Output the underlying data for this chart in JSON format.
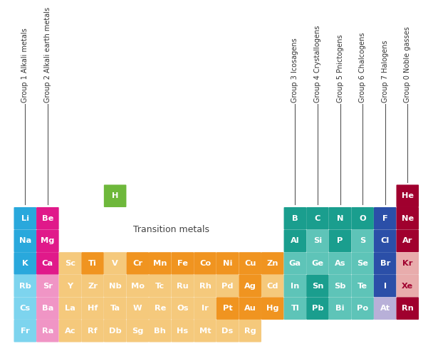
{
  "bg_color": "#ffffff",
  "col_labels": [
    {
      "text": "Group 1 Alkali metals",
      "col": 0
    },
    {
      "text": "Group 2 Alkali earth metals",
      "col": 1
    },
    {
      "text": "Group 3 Icosagens",
      "col": 12
    },
    {
      "text": "Group 4 Crystallogens",
      "col": 13
    },
    {
      "text": "Group 5 Pnictogens",
      "col": 14
    },
    {
      "text": "Group 6 Chalcogens",
      "col": 15
    },
    {
      "text": "Group 7 Halogens",
      "col": 16
    },
    {
      "text": "Group 0 Noble gasses",
      "col": 17
    }
  ],
  "elements": [
    {
      "symbol": "H",
      "row": 1,
      "col": 4,
      "color": "#6EB83B",
      "text_color": "#ffffff"
    },
    {
      "symbol": "He",
      "row": 1,
      "col": 17,
      "color": "#A0002E",
      "text_color": "#ffffff"
    },
    {
      "symbol": "Li",
      "row": 2,
      "col": 0,
      "color": "#29A8DC",
      "text_color": "#ffffff"
    },
    {
      "symbol": "Be",
      "row": 2,
      "col": 1,
      "color": "#E0198A",
      "text_color": "#ffffff"
    },
    {
      "symbol": "B",
      "row": 2,
      "col": 12,
      "color": "#1A9E8E",
      "text_color": "#ffffff"
    },
    {
      "symbol": "C",
      "row": 2,
      "col": 13,
      "color": "#1A9E8E",
      "text_color": "#ffffff"
    },
    {
      "symbol": "N",
      "row": 2,
      "col": 14,
      "color": "#1A9E8E",
      "text_color": "#ffffff"
    },
    {
      "symbol": "O",
      "row": 2,
      "col": 15,
      "color": "#1A9E8E",
      "text_color": "#ffffff"
    },
    {
      "symbol": "F",
      "row": 2,
      "col": 16,
      "color": "#2B4FA8",
      "text_color": "#ffffff"
    },
    {
      "symbol": "Ne",
      "row": 2,
      "col": 17,
      "color": "#A0002E",
      "text_color": "#ffffff"
    },
    {
      "symbol": "Na",
      "row": 3,
      "col": 0,
      "color": "#29A8DC",
      "text_color": "#ffffff"
    },
    {
      "symbol": "Mg",
      "row": 3,
      "col": 1,
      "color": "#E0198A",
      "text_color": "#ffffff"
    },
    {
      "symbol": "Al",
      "row": 3,
      "col": 12,
      "color": "#1A9E8E",
      "text_color": "#ffffff"
    },
    {
      "symbol": "Si",
      "row": 3,
      "col": 13,
      "color": "#5EC4B8",
      "text_color": "#ffffff"
    },
    {
      "symbol": "P",
      "row": 3,
      "col": 14,
      "color": "#1A9E8E",
      "text_color": "#ffffff"
    },
    {
      "symbol": "S",
      "row": 3,
      "col": 15,
      "color": "#5EC4B8",
      "text_color": "#ffffff"
    },
    {
      "symbol": "Cl",
      "row": 3,
      "col": 16,
      "color": "#2B4FA8",
      "text_color": "#ffffff"
    },
    {
      "symbol": "Ar",
      "row": 3,
      "col": 17,
      "color": "#A0002E",
      "text_color": "#ffffff"
    },
    {
      "symbol": "K",
      "row": 4,
      "col": 0,
      "color": "#29A8DC",
      "text_color": "#ffffff"
    },
    {
      "symbol": "Ca",
      "row": 4,
      "col": 1,
      "color": "#E0198A",
      "text_color": "#ffffff"
    },
    {
      "symbol": "Sc",
      "row": 4,
      "col": 2,
      "color": "#F5C97C",
      "text_color": "#ffffff"
    },
    {
      "symbol": "Ti",
      "row": 4,
      "col": 3,
      "color": "#F09420",
      "text_color": "#ffffff"
    },
    {
      "symbol": "V",
      "row": 4,
      "col": 4,
      "color": "#F5C97C",
      "text_color": "#ffffff"
    },
    {
      "symbol": "Cr",
      "row": 4,
      "col": 5,
      "color": "#F09420",
      "text_color": "#ffffff"
    },
    {
      "symbol": "Mn",
      "row": 4,
      "col": 6,
      "color": "#F09420",
      "text_color": "#ffffff"
    },
    {
      "symbol": "Fe",
      "row": 4,
      "col": 7,
      "color": "#F09420",
      "text_color": "#ffffff"
    },
    {
      "symbol": "Co",
      "row": 4,
      "col": 8,
      "color": "#F09420",
      "text_color": "#ffffff"
    },
    {
      "symbol": "Ni",
      "row": 4,
      "col": 9,
      "color": "#F09420",
      "text_color": "#ffffff"
    },
    {
      "symbol": "Cu",
      "row": 4,
      "col": 10,
      "color": "#F09420",
      "text_color": "#ffffff"
    },
    {
      "symbol": "Zn",
      "row": 4,
      "col": 11,
      "color": "#F09420",
      "text_color": "#ffffff"
    },
    {
      "symbol": "Ga",
      "row": 4,
      "col": 12,
      "color": "#5EC4B8",
      "text_color": "#ffffff"
    },
    {
      "symbol": "Ge",
      "row": 4,
      "col": 13,
      "color": "#5EC4B8",
      "text_color": "#ffffff"
    },
    {
      "symbol": "As",
      "row": 4,
      "col": 14,
      "color": "#5EC4B8",
      "text_color": "#ffffff"
    },
    {
      "symbol": "Se",
      "row": 4,
      "col": 15,
      "color": "#5EC4B8",
      "text_color": "#ffffff"
    },
    {
      "symbol": "Br",
      "row": 4,
      "col": 16,
      "color": "#2B4FA8",
      "text_color": "#ffffff"
    },
    {
      "symbol": "Kr",
      "row": 4,
      "col": 17,
      "color": "#E8ACAC",
      "text_color": "#A0002E"
    },
    {
      "symbol": "Rb",
      "row": 5,
      "col": 0,
      "color": "#7DD4EE",
      "text_color": "#ffffff"
    },
    {
      "symbol": "Sr",
      "row": 5,
      "col": 1,
      "color": "#F095C5",
      "text_color": "#ffffff"
    },
    {
      "symbol": "Y",
      "row": 5,
      "col": 2,
      "color": "#F5C97C",
      "text_color": "#ffffff"
    },
    {
      "symbol": "Zr",
      "row": 5,
      "col": 3,
      "color": "#F5C97C",
      "text_color": "#ffffff"
    },
    {
      "symbol": "Nb",
      "row": 5,
      "col": 4,
      "color": "#F5C97C",
      "text_color": "#ffffff"
    },
    {
      "symbol": "Mo",
      "row": 5,
      "col": 5,
      "color": "#F5C97C",
      "text_color": "#ffffff"
    },
    {
      "symbol": "Tc",
      "row": 5,
      "col": 6,
      "color": "#F5C97C",
      "text_color": "#ffffff"
    },
    {
      "symbol": "Ru",
      "row": 5,
      "col": 7,
      "color": "#F5C97C",
      "text_color": "#ffffff"
    },
    {
      "symbol": "Rh",
      "row": 5,
      "col": 8,
      "color": "#F5C97C",
      "text_color": "#ffffff"
    },
    {
      "symbol": "Pd",
      "row": 5,
      "col": 9,
      "color": "#F5C97C",
      "text_color": "#ffffff"
    },
    {
      "symbol": "Ag",
      "row": 5,
      "col": 10,
      "color": "#F09420",
      "text_color": "#ffffff"
    },
    {
      "symbol": "Cd",
      "row": 5,
      "col": 11,
      "color": "#F5C97C",
      "text_color": "#ffffff"
    },
    {
      "symbol": "In",
      "row": 5,
      "col": 12,
      "color": "#5EC4B8",
      "text_color": "#ffffff"
    },
    {
      "symbol": "Sn",
      "row": 5,
      "col": 13,
      "color": "#1A9E8E",
      "text_color": "#ffffff"
    },
    {
      "symbol": "Sb",
      "row": 5,
      "col": 14,
      "color": "#5EC4B8",
      "text_color": "#ffffff"
    },
    {
      "symbol": "Te",
      "row": 5,
      "col": 15,
      "color": "#5EC4B8",
      "text_color": "#ffffff"
    },
    {
      "symbol": "I",
      "row": 5,
      "col": 16,
      "color": "#2B4FA8",
      "text_color": "#ffffff"
    },
    {
      "symbol": "Xe",
      "row": 5,
      "col": 17,
      "color": "#E8ACAC",
      "text_color": "#A0002E"
    },
    {
      "symbol": "Cs",
      "row": 6,
      "col": 0,
      "color": "#7DD4EE",
      "text_color": "#ffffff"
    },
    {
      "symbol": "Ba",
      "row": 6,
      "col": 1,
      "color": "#F095C5",
      "text_color": "#ffffff"
    },
    {
      "symbol": "La",
      "row": 6,
      "col": 2,
      "color": "#F5C97C",
      "text_color": "#ffffff"
    },
    {
      "symbol": "Hf",
      "row": 6,
      "col": 3,
      "color": "#F5C97C",
      "text_color": "#ffffff"
    },
    {
      "symbol": "Ta",
      "row": 6,
      "col": 4,
      "color": "#F5C97C",
      "text_color": "#ffffff"
    },
    {
      "symbol": "W",
      "row": 6,
      "col": 5,
      "color": "#F5C97C",
      "text_color": "#ffffff"
    },
    {
      "symbol": "Re",
      "row": 6,
      "col": 6,
      "color": "#F5C97C",
      "text_color": "#ffffff"
    },
    {
      "symbol": "Os",
      "row": 6,
      "col": 7,
      "color": "#F5C97C",
      "text_color": "#ffffff"
    },
    {
      "symbol": "Ir",
      "row": 6,
      "col": 8,
      "color": "#F5C97C",
      "text_color": "#ffffff"
    },
    {
      "symbol": "Pt",
      "row": 6,
      "col": 9,
      "color": "#F09420",
      "text_color": "#ffffff"
    },
    {
      "symbol": "Au",
      "row": 6,
      "col": 10,
      "color": "#F09420",
      "text_color": "#ffffff"
    },
    {
      "symbol": "Hg",
      "row": 6,
      "col": 11,
      "color": "#F09420",
      "text_color": "#ffffff"
    },
    {
      "symbol": "Tl",
      "row": 6,
      "col": 12,
      "color": "#5EC4B8",
      "text_color": "#ffffff"
    },
    {
      "symbol": "Pb",
      "row": 6,
      "col": 13,
      "color": "#1A9E8E",
      "text_color": "#ffffff"
    },
    {
      "symbol": "Bi",
      "row": 6,
      "col": 14,
      "color": "#5EC4B8",
      "text_color": "#ffffff"
    },
    {
      "symbol": "Po",
      "row": 6,
      "col": 15,
      "color": "#5EC4B8",
      "text_color": "#ffffff"
    },
    {
      "symbol": "At",
      "row": 6,
      "col": 16,
      "color": "#B8B0D8",
      "text_color": "#ffffff"
    },
    {
      "symbol": "Rn",
      "row": 6,
      "col": 17,
      "color": "#A0002E",
      "text_color": "#ffffff"
    },
    {
      "symbol": "Fr",
      "row": 7,
      "col": 0,
      "color": "#7DD4EE",
      "text_color": "#ffffff"
    },
    {
      "symbol": "Ra",
      "row": 7,
      "col": 1,
      "color": "#F095C5",
      "text_color": "#ffffff"
    },
    {
      "symbol": "Ac",
      "row": 7,
      "col": 2,
      "color": "#F5C97C",
      "text_color": "#ffffff"
    },
    {
      "symbol": "Rf",
      "row": 7,
      "col": 3,
      "color": "#F5C97C",
      "text_color": "#ffffff"
    },
    {
      "symbol": "Db",
      "row": 7,
      "col": 4,
      "color": "#F5C97C",
      "text_color": "#ffffff"
    },
    {
      "symbol": "Sg",
      "row": 7,
      "col": 5,
      "color": "#F5C97C",
      "text_color": "#ffffff"
    },
    {
      "symbol": "Bh",
      "row": 7,
      "col": 6,
      "color": "#F5C97C",
      "text_color": "#ffffff"
    },
    {
      "symbol": "Hs",
      "row": 7,
      "col": 7,
      "color": "#F5C97C",
      "text_color": "#ffffff"
    },
    {
      "symbol": "Mt",
      "row": 7,
      "col": 8,
      "color": "#F5C97C",
      "text_color": "#ffffff"
    },
    {
      "symbol": "Ds",
      "row": 7,
      "col": 9,
      "color": "#F5C97C",
      "text_color": "#ffffff"
    },
    {
      "symbol": "Rg",
      "row": 7,
      "col": 10,
      "color": "#F5C97C",
      "text_color": "#ffffff"
    }
  ],
  "transition_label": "Transition metals"
}
